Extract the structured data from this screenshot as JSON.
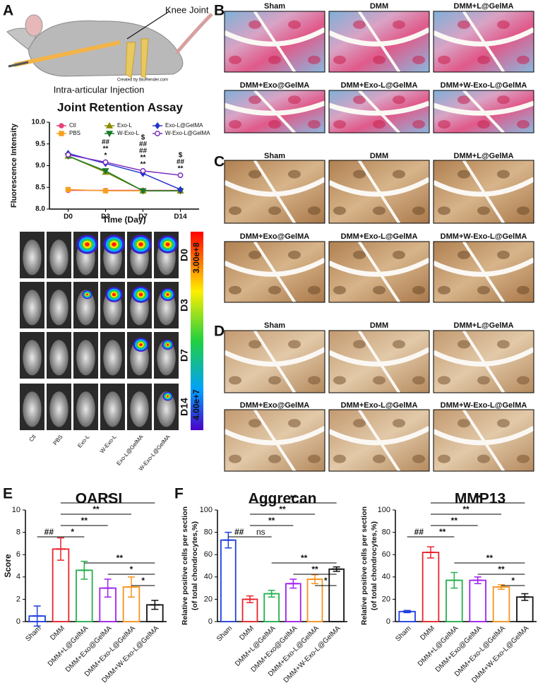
{
  "panel_labels": [
    "A",
    "B",
    "C",
    "D",
    "E",
    "F"
  ],
  "illustration": {
    "label": "Knee Joint",
    "credit": "Created by BioRender.com",
    "caption": "Intra-articular Injection"
  },
  "imaging": {
    "rows": [
      "D0",
      "D3",
      "D7",
      "D14"
    ],
    "columns": [
      "Ctl",
      "PBS",
      "Exo-L",
      "W-Exo-L",
      "Exo-L@GelMA",
      "W-Exo-L@GelMA"
    ],
    "colorbar": {
      "max_label": "3.00e+8",
      "min_label": "4.00e+7"
    }
  },
  "histology": [
    {
      "groups": [
        "Sham",
        "DMM",
        "DMM+L@GelMA",
        "DMM+Exo@GelMA",
        "DMM+Exo-L@GelMA",
        "DMM+W-Exo-L@GelMA"
      ]
    },
    {
      "groups": [
        "Sham",
        "DMM",
        "DMM+L@GelMA",
        "DMM+Exo@GelMA",
        "DMM+Exo-L@GelMA",
        "DMM+W-Exo-L@GelMA"
      ]
    },
    {
      "groups": [
        "Sham",
        "DMM",
        "DMM+L@GelMA",
        "DMM+Exo@GelMA",
        "DMM+Exo-L@GelMA",
        "DMM+W-Exo-L@GelMA"
      ]
    }
  ],
  "chart_data": [
    {
      "type": "line",
      "title": "Joint Retention Assay",
      "x_label": "Time (Day)",
      "y_label": "Fluorescence Intensity",
      "categories": [
        "D0",
        "D3",
        "D7",
        "D14"
      ],
      "ylim": [
        8.0,
        10.0
      ],
      "yticks": [
        {
          "value": 8,
          "label": "8.0"
        },
        {
          "value": 8.5,
          "label": "8.5"
        },
        {
          "value": 9,
          "label": "9.0"
        },
        {
          "value": 9.5,
          "label": "9.5"
        },
        {
          "value": 10,
          "label": "10.0"
        }
      ],
      "legend": "top",
      "series": [
        {
          "name": "Ctl",
          "color": "#e8417b",
          "marker": "circle",
          "values": [
            8.43,
            8.43,
            8.43,
            8.43
          ]
        },
        {
          "name": "PBS",
          "color": "#f5a020",
          "marker": "square",
          "values": [
            8.45,
            8.42,
            8.42,
            8.42
          ]
        },
        {
          "name": "Exo-L",
          "color": "#8b8b00",
          "marker": "triangle",
          "values": [
            9.22,
            8.85,
            8.42,
            8.42
          ]
        },
        {
          "name": "W-Exo-L",
          "color": "#1a7a2a",
          "marker": "triangle-down",
          "values": [
            9.22,
            8.88,
            8.42,
            8.42
          ]
        },
        {
          "name": "Exo-L@GelMA",
          "color": "#2233cc",
          "marker": "diamond",
          "values": [
            9.28,
            9.05,
            8.82,
            8.45
          ]
        },
        {
          "name": "W-Exo-L@GelMA",
          "color": "#7b2fbf",
          "marker": "circle-open",
          "values": [
            9.25,
            9.08,
            8.88,
            8.78
          ]
        }
      ],
      "annotations": [
        {
          "category": "D3",
          "marks": [
            {
              "text": "##",
              "color": "#9b30d0"
            },
            {
              "text": "**",
              "color": "#9b30d0"
            },
            {
              "text": "*",
              "color": "#2233cc"
            }
          ]
        },
        {
          "category": "D7",
          "marks": [
            {
              "text": "$",
              "color": "#222222"
            },
            {
              "text": "##",
              "color": "#9b30d0"
            },
            {
              "text": "##",
              "color": "#2233cc"
            },
            {
              "text": "**",
              "color": "#9b30d0"
            },
            {
              "text": "**",
              "color": "#2233cc"
            }
          ]
        },
        {
          "category": "D14",
          "marks": [
            {
              "text": "$",
              "color": "#222222"
            },
            {
              "text": "##",
              "color": "#9b30d0"
            },
            {
              "text": "**",
              "color": "#9b30d0"
            }
          ]
        }
      ]
    },
    {
      "type": "bar",
      "title": "OARSI",
      "y_label": [
        "Score"
      ],
      "categories": [
        "Sham",
        "DMM",
        "DMM+L@GelMA",
        "DMM+Exo@GelMA",
        "DMM+Exo-L@GelMA",
        "DMM+W-Exo-L@GelMA"
      ],
      "values": [
        0.5,
        6.5,
        4.6,
        3.0,
        3.1,
        1.5
      ],
      "errors": [
        0.9,
        1.0,
        0.8,
        0.8,
        0.9,
        0.4
      ],
      "colors": [
        "#1f3fe0",
        "#e8232a",
        "#22b14c",
        "#a020f0",
        "#f7941d",
        "#111111"
      ],
      "ylim": [
        0,
        10
      ],
      "yticks": [
        0,
        2,
        4,
        6,
        8,
        10
      ],
      "comparisons": [
        {
          "from": "DMM",
          "to": "DMM+W-Exo-L@GelMA",
          "label": "**"
        },
        {
          "from": "DMM",
          "to": "DMM+Exo-L@GelMA",
          "label": "**"
        },
        {
          "from": "DMM",
          "to": "DMM+Exo@GelMA",
          "label": "**"
        },
        {
          "from": "DMM",
          "to": "DMM+L@GelMA",
          "label": "*"
        },
        {
          "from": "Sham",
          "to": "DMM",
          "label": "##"
        },
        {
          "from": "DMM+L@GelMA",
          "to": "DMM+W-Exo-L@GelMA",
          "label": "**"
        },
        {
          "from": "DMM+Exo@GelMA",
          "to": "DMM+W-Exo-L@GelMA",
          "label": "*"
        },
        {
          "from": "DMM+Exo-L@GelMA",
          "to": "DMM+W-Exo-L@GelMA",
          "label": "*"
        }
      ]
    },
    {
      "type": "bar",
      "title": "Aggrecan",
      "y_label": [
        "Relative positive cells per section",
        "(of total chondrocytes,%)"
      ],
      "categories": [
        "Sham",
        "DMM",
        "DMM+L@GelMA",
        "DMM+Exo@GelMA",
        "DMM+Exo-L@GelMA",
        "DMM+W-Exo-L@GelMA"
      ],
      "values": [
        73,
        20,
        25,
        34,
        38,
        47
      ],
      "errors": [
        7,
        3,
        3,
        4,
        4,
        2
      ],
      "colors": [
        "#1f3fe0",
        "#e8232a",
        "#22b14c",
        "#a020f0",
        "#f7941d",
        "#111111"
      ],
      "ylim": [
        0,
        100
      ],
      "yticks": [
        0,
        20,
        40,
        60,
        80,
        100
      ],
      "comparisons": [
        {
          "from": "DMM",
          "to": "DMM+W-Exo-L@GelMA",
          "label": "**"
        },
        {
          "from": "DMM",
          "to": "DMM+Exo-L@GelMA",
          "label": "**"
        },
        {
          "from": "DMM",
          "to": "DMM+Exo@GelMA",
          "label": "**"
        },
        {
          "from": "DMM",
          "to": "DMM+L@GelMA",
          "label": "ns"
        },
        {
          "from": "Sham",
          "to": "DMM",
          "label": "##"
        },
        {
          "from": "DMM+L@GelMA",
          "to": "DMM+W-Exo-L@GelMA",
          "label": "**"
        },
        {
          "from": "DMM+Exo@GelMA",
          "to": "DMM+W-Exo-L@GelMA",
          "label": "**"
        },
        {
          "from": "DMM+Exo-L@GelMA",
          "to": "DMM+W-Exo-L@GelMA",
          "label": "*"
        }
      ]
    },
    {
      "type": "bar",
      "title": "MMP13",
      "y_label": [
        "Relative positive cells per section",
        "(of total chondrocytes,%)"
      ],
      "categories": [
        "Sham",
        "DMM",
        "DMM+L@GelMA",
        "DMM+Exo@GelMA",
        "DMM+Exo-L@GelMA",
        "DMM+W-Exo-L@GelMA"
      ],
      "values": [
        9,
        62,
        37,
        37,
        31,
        22
      ],
      "errors": [
        1,
        5,
        7,
        3,
        2,
        3
      ],
      "colors": [
        "#1f3fe0",
        "#e8232a",
        "#22b14c",
        "#a020f0",
        "#f7941d",
        "#111111"
      ],
      "ylim": [
        0,
        100
      ],
      "yticks": [
        0,
        20,
        40,
        60,
        80,
        100
      ],
      "comparisons": [
        {
          "from": "DMM",
          "to": "DMM+W-Exo-L@GelMA",
          "label": "**"
        },
        {
          "from": "DMM",
          "to": "DMM+Exo-L@GelMA",
          "label": "**"
        },
        {
          "from": "DMM",
          "to": "DMM+Exo@GelMA",
          "label": "**"
        },
        {
          "from": "DMM",
          "to": "DMM+L@GelMA",
          "label": "**"
        },
        {
          "from": "Sham",
          "to": "DMM",
          "label": "##"
        },
        {
          "from": "DMM+L@GelMA",
          "to": "DMM+W-Exo-L@GelMA",
          "label": "**"
        },
        {
          "from": "DMM+Exo@GelMA",
          "to": "DMM+W-Exo-L@GelMA",
          "label": "**"
        },
        {
          "from": "DMM+Exo-L@GelMA",
          "to": "DMM+W-Exo-L@GelMA",
          "label": "*"
        }
      ]
    }
  ]
}
